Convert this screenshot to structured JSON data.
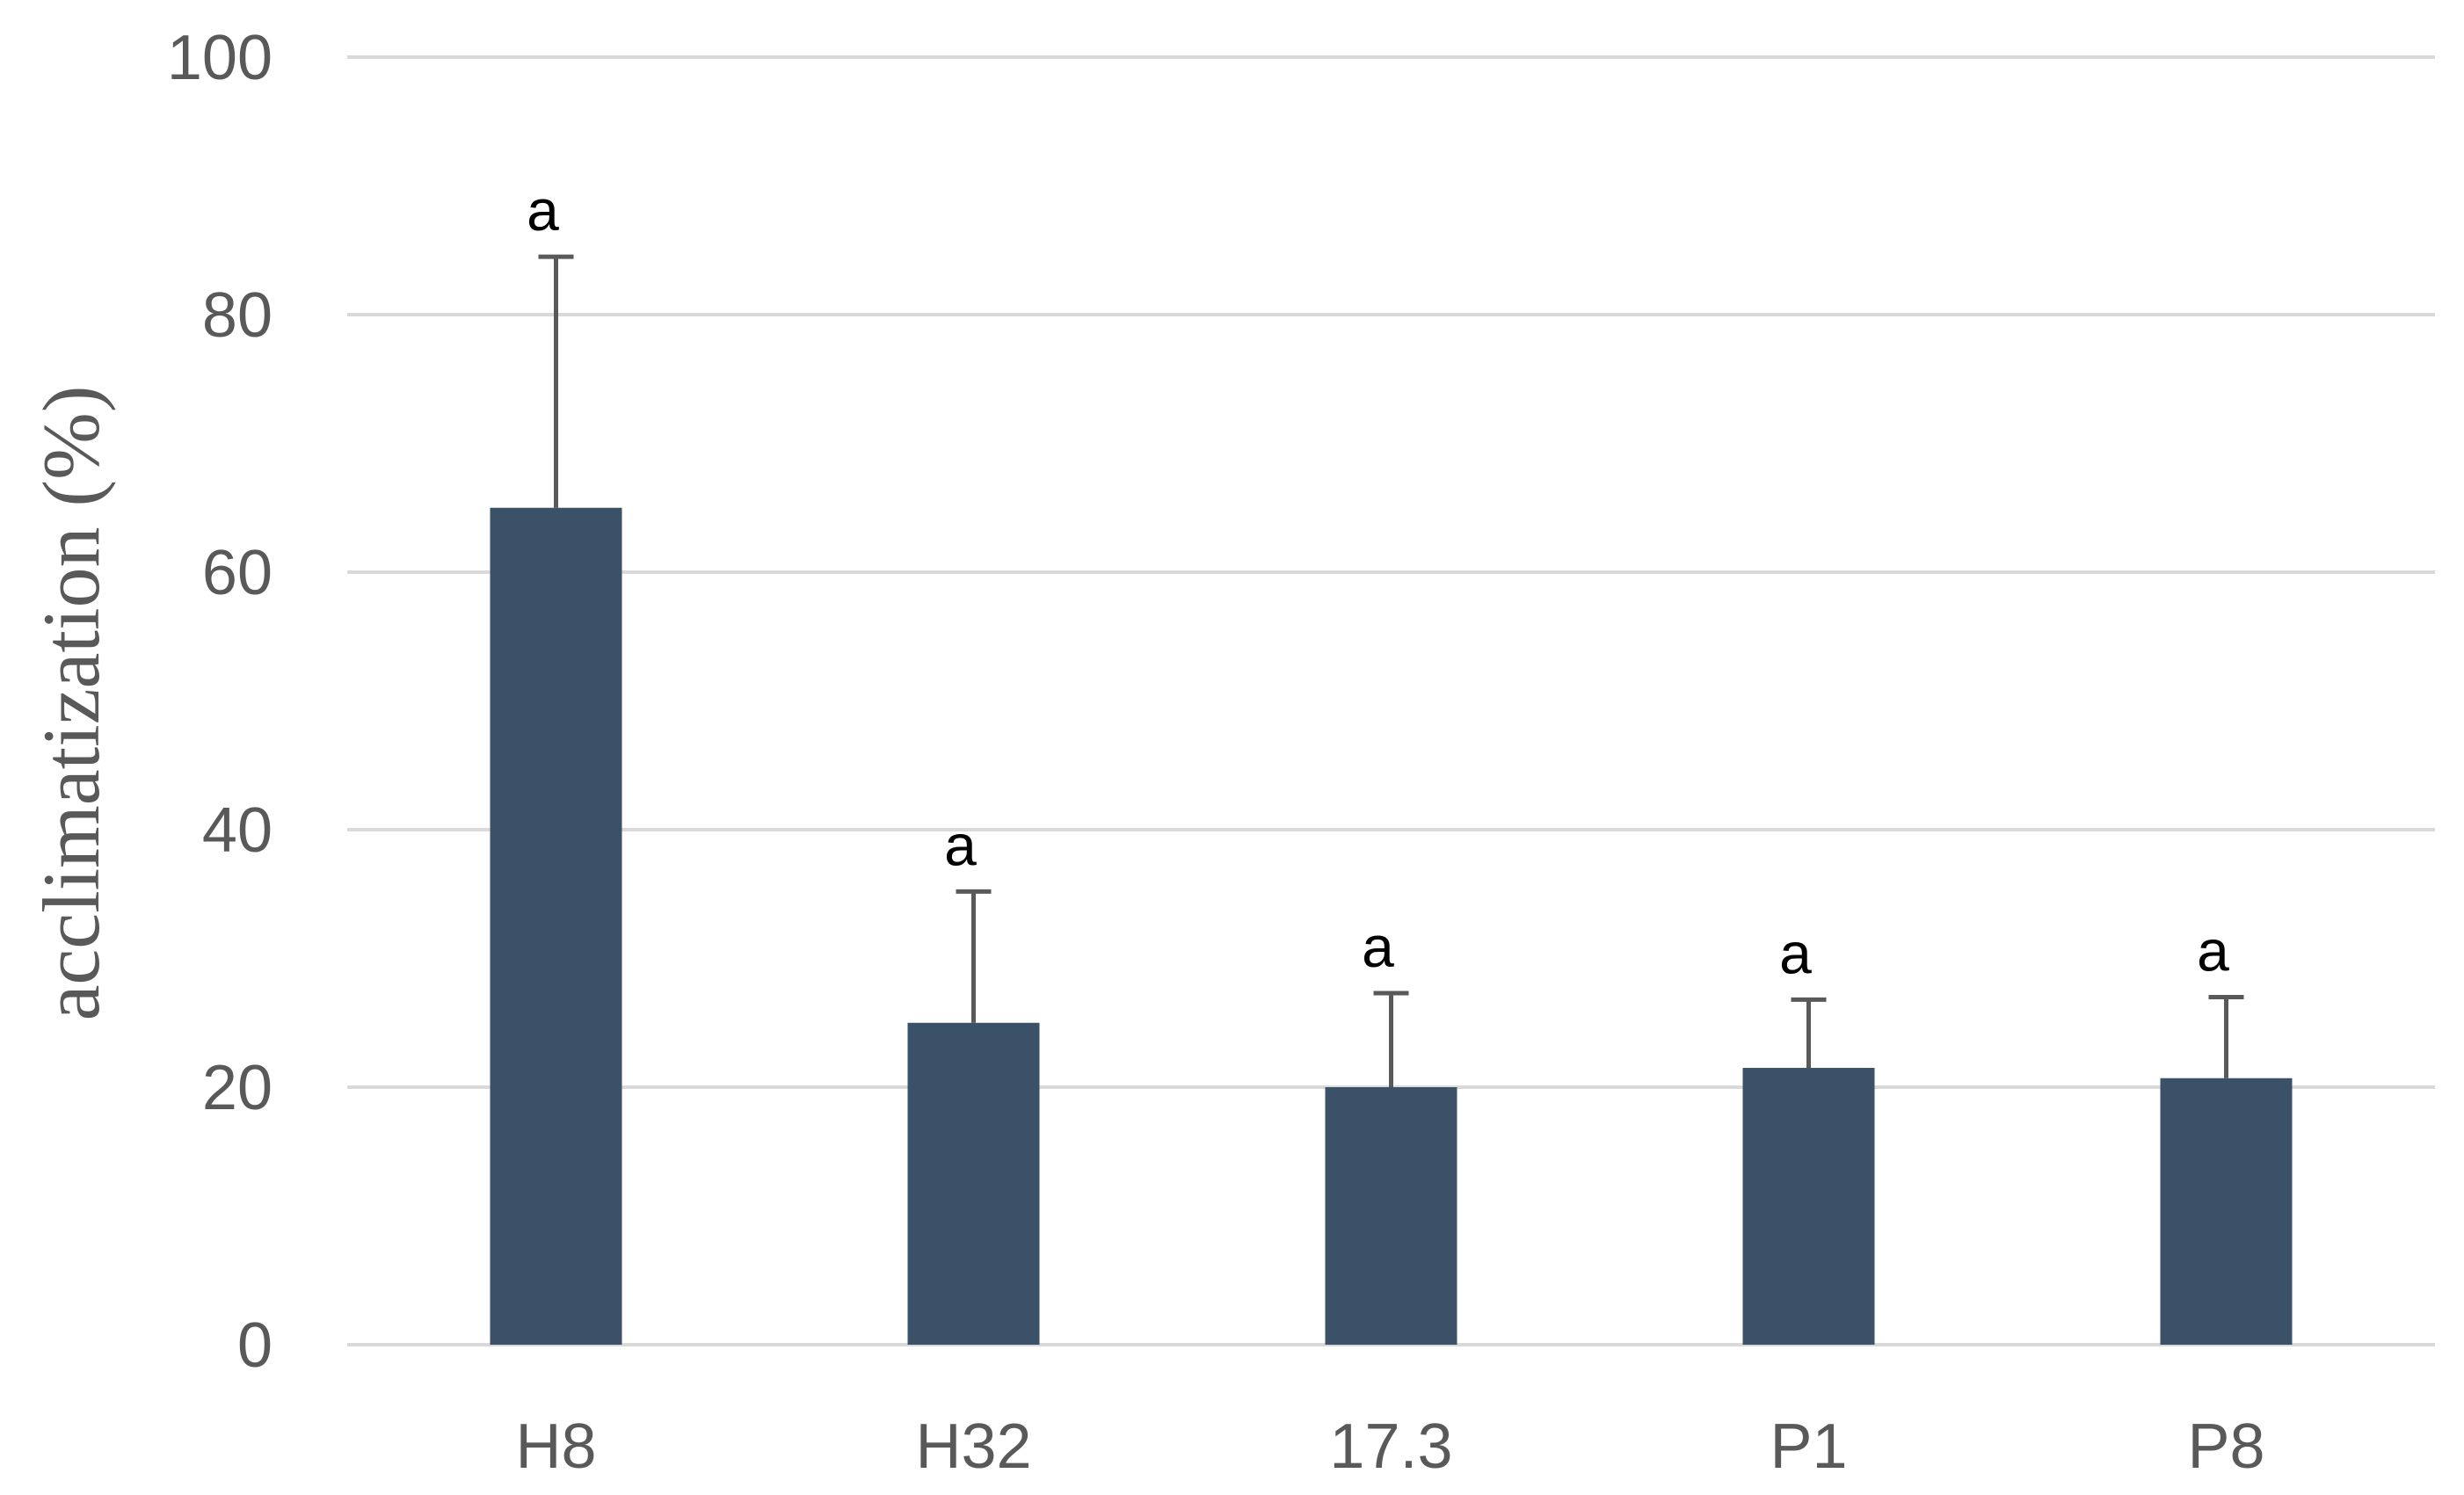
{
  "chart_data": {
    "type": "bar",
    "title": "",
    "xlabel": "",
    "ylabel": "acclimatization (%)",
    "categories": [
      "H8",
      "H32",
      "17.3",
      "P1",
      "P8"
    ],
    "values": [
      65,
      25,
      20,
      21.5,
      20.7
    ],
    "error_upper": [
      19.5,
      10.2,
      7.3,
      5.3,
      6.3
    ],
    "significance_letters": [
      "a",
      "a",
      "a",
      "a",
      "a"
    ],
    "ylim": [
      0,
      100
    ],
    "yticks": [
      0,
      20,
      40,
      60,
      80,
      100
    ],
    "grid": true,
    "legend": "none",
    "colors": {
      "bar": "#3b5168",
      "error_bar": "#595959",
      "grid": "#d9d9d9",
      "axis_text": "#595959",
      "sig_text": "#000000"
    }
  }
}
